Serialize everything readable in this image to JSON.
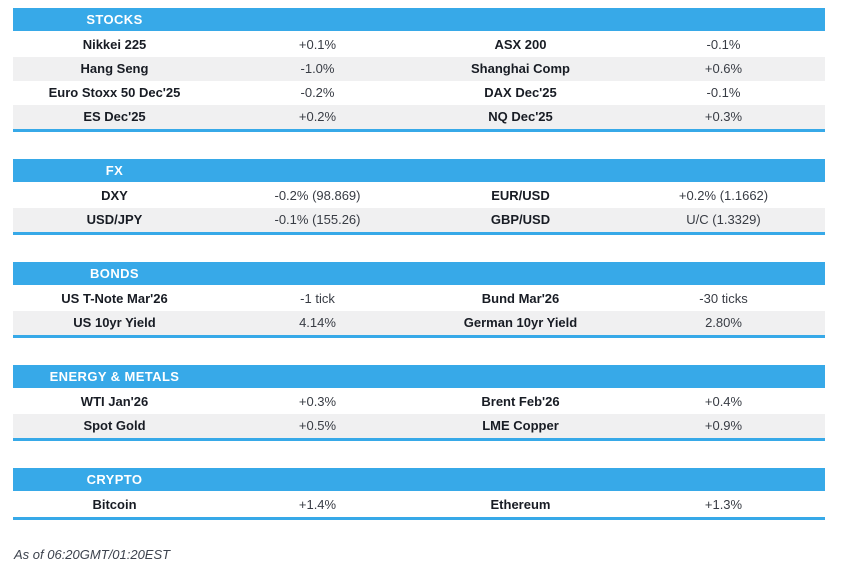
{
  "colors": {
    "accent": "#37a9e8",
    "row_alt": "#f0f0f1"
  },
  "sections": [
    {
      "title": "STOCKS",
      "rows": [
        {
          "name1": "Nikkei 225",
          "value1": "+0.1%",
          "name2": "ASX 200",
          "value2": "-0.1%"
        },
        {
          "name1": "Hang Seng",
          "value1": "-1.0%",
          "name2": "Shanghai Comp",
          "value2": "+0.6%"
        },
        {
          "name1": "Euro Stoxx 50 Dec'25",
          "value1": "-0.2%",
          "name2": "DAX Dec'25",
          "value2": "-0.1%"
        },
        {
          "name1": "ES Dec'25",
          "value1": "+0.2%",
          "name2": "NQ Dec'25",
          "value2": "+0.3%"
        }
      ]
    },
    {
      "title": "FX",
      "rows": [
        {
          "name1": "DXY",
          "value1": "-0.2% (98.869)",
          "name2": "EUR/USD",
          "value2": "+0.2% (1.1662)"
        },
        {
          "name1": "USD/JPY",
          "value1": "-0.1% (155.26)",
          "name2": "GBP/USD",
          "value2": "U/C (1.3329)"
        }
      ]
    },
    {
      "title": "BONDS",
      "rows": [
        {
          "name1": "US T-Note Mar'26",
          "value1": "-1 tick",
          "name2": "Bund Mar'26",
          "value2": "-30 ticks"
        },
        {
          "name1": "US 10yr Yield",
          "value1": "4.14%",
          "name2": "German 10yr Yield",
          "value2": "2.80%"
        }
      ]
    },
    {
      "title": "ENERGY & METALS",
      "rows": [
        {
          "name1": "WTI Jan'26",
          "value1": "+0.3%",
          "name2": "Brent Feb'26",
          "value2": "+0.4%"
        },
        {
          "name1": "Spot Gold",
          "value1": "+0.5%",
          "name2": "LME Copper",
          "value2": "+0.9%"
        }
      ]
    },
    {
      "title": "CRYPTO",
      "rows": [
        {
          "name1": "Bitcoin",
          "value1": "+1.4%",
          "name2": "Ethereum",
          "value2": "+1.3%"
        }
      ]
    }
  ],
  "footer": {
    "as_of": "As of 06:20GMT/01:20EST"
  }
}
